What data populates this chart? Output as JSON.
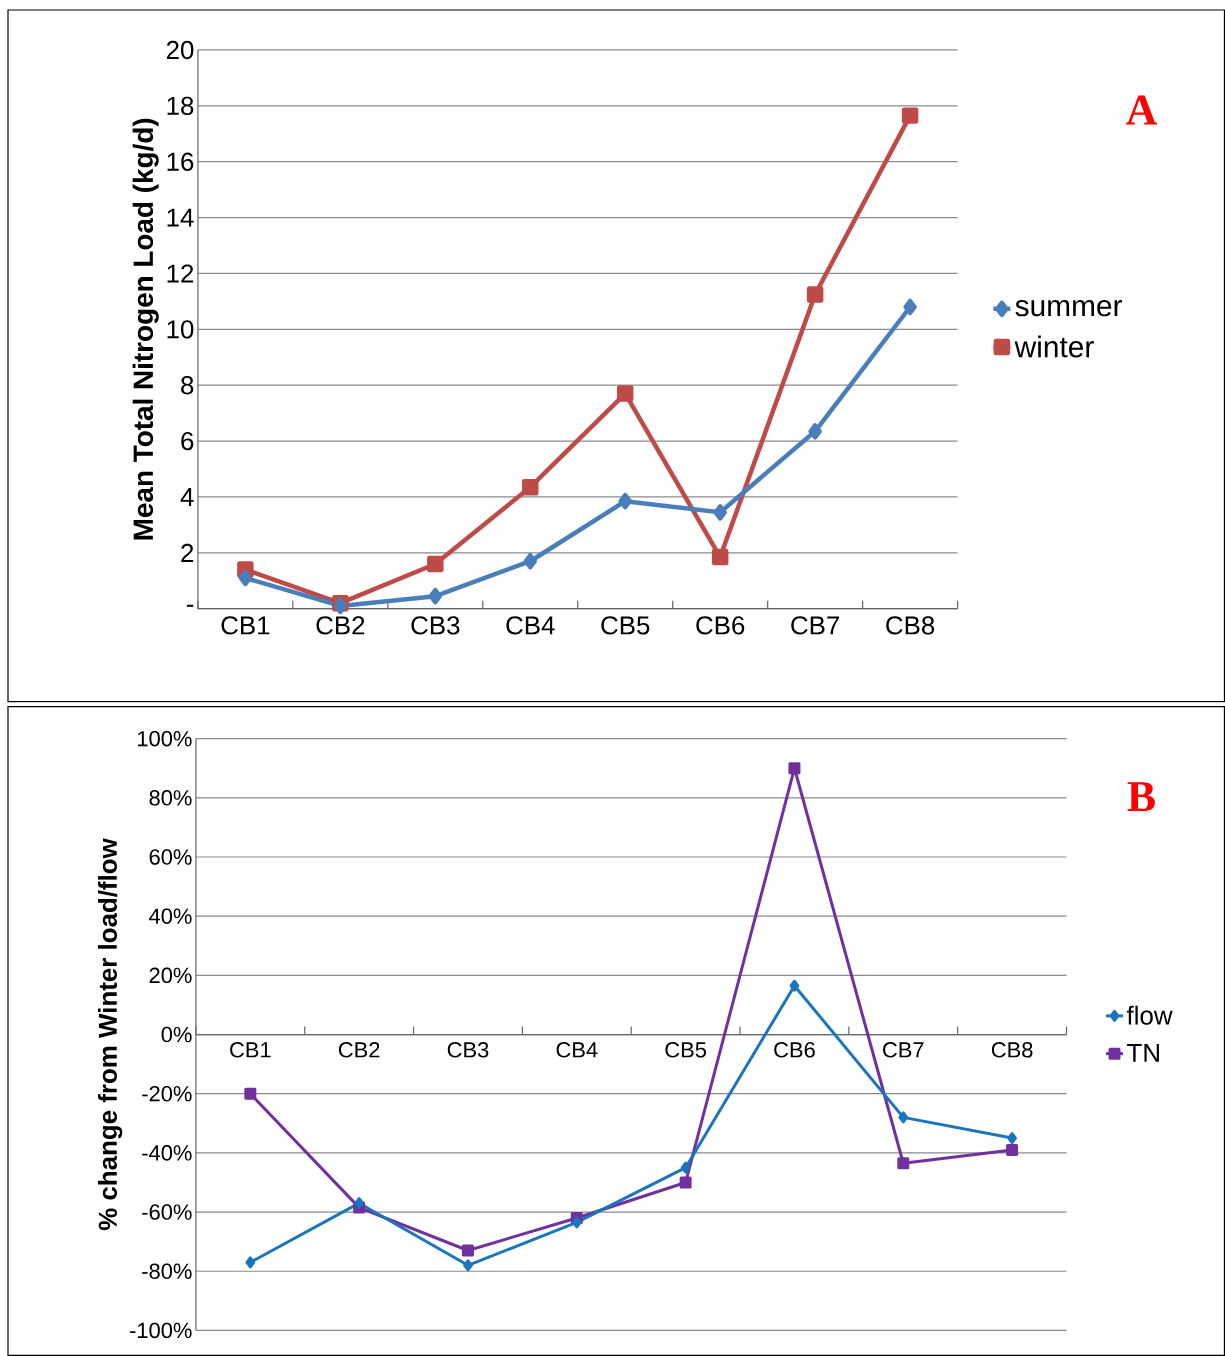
{
  "chart_data": [
    {
      "type": "line",
      "ylabel": "Mean Total Nitrogen Load (kg/d)",
      "annotations": [
        "A"
      ],
      "categories": [
        "CB1",
        "CB2",
        "CB3",
        "CB4",
        "CB5",
        "CB6",
        "CB7",
        "CB8"
      ],
      "series": [
        {
          "name": "summer",
          "color": "#4a7ebb",
          "marker": "diamond",
          "values": [
            1.1,
            0.1,
            0.45,
            1.7,
            3.85,
            3.45,
            6.35,
            10.8
          ]
        },
        {
          "name": "winter",
          "color": "#be4b48",
          "marker": "square",
          "values": [
            1.4,
            0.2,
            1.6,
            4.35,
            7.7,
            1.85,
            11.25,
            17.65
          ]
        }
      ],
      "ylim": [
        0,
        20
      ],
      "yticks": [
        {
          "value": 0,
          "label": "-"
        },
        2,
        4,
        6,
        8,
        10,
        12,
        14,
        16,
        18,
        20
      ],
      "grid": "y",
      "legend": "right"
    },
    {
      "type": "line",
      "ylabel": "% change from Winter load/flow",
      "annotations": [
        "B"
      ],
      "categories": [
        "CB1",
        "CB2",
        "CB3",
        "CB4",
        "CB5",
        "CB6",
        "CB7",
        "CB8"
      ],
      "series": [
        {
          "name": "flow",
          "color": "#1a75bc",
          "marker": "diamond",
          "values": [
            -77,
            -57,
            -78,
            -63.5,
            -45,
            16.5,
            -28,
            -35
          ]
        },
        {
          "name": "TN",
          "color": "#7030a0",
          "marker": "square",
          "values": [
            -20,
            -58.5,
            -73,
            -62,
            -50,
            90,
            -43.5,
            -39
          ]
        }
      ],
      "ylim": [
        -100,
        100
      ],
      "yticks": [
        {
          "value": -100,
          "label": "-100%"
        },
        {
          "value": -80,
          "label": "-80%"
        },
        {
          "value": -60,
          "label": "-60%"
        },
        {
          "value": -40,
          "label": "-40%"
        },
        {
          "value": -20,
          "label": "-20%"
        },
        {
          "value": 0,
          "label": "0%"
        },
        {
          "value": 20,
          "label": "20%"
        },
        {
          "value": 40,
          "label": "40%"
        },
        {
          "value": 60,
          "label": "60%"
        },
        {
          "value": 80,
          "label": "80%"
        },
        {
          "value": 100,
          "label": "100%"
        }
      ],
      "grid": "y",
      "legend": "right"
    }
  ]
}
